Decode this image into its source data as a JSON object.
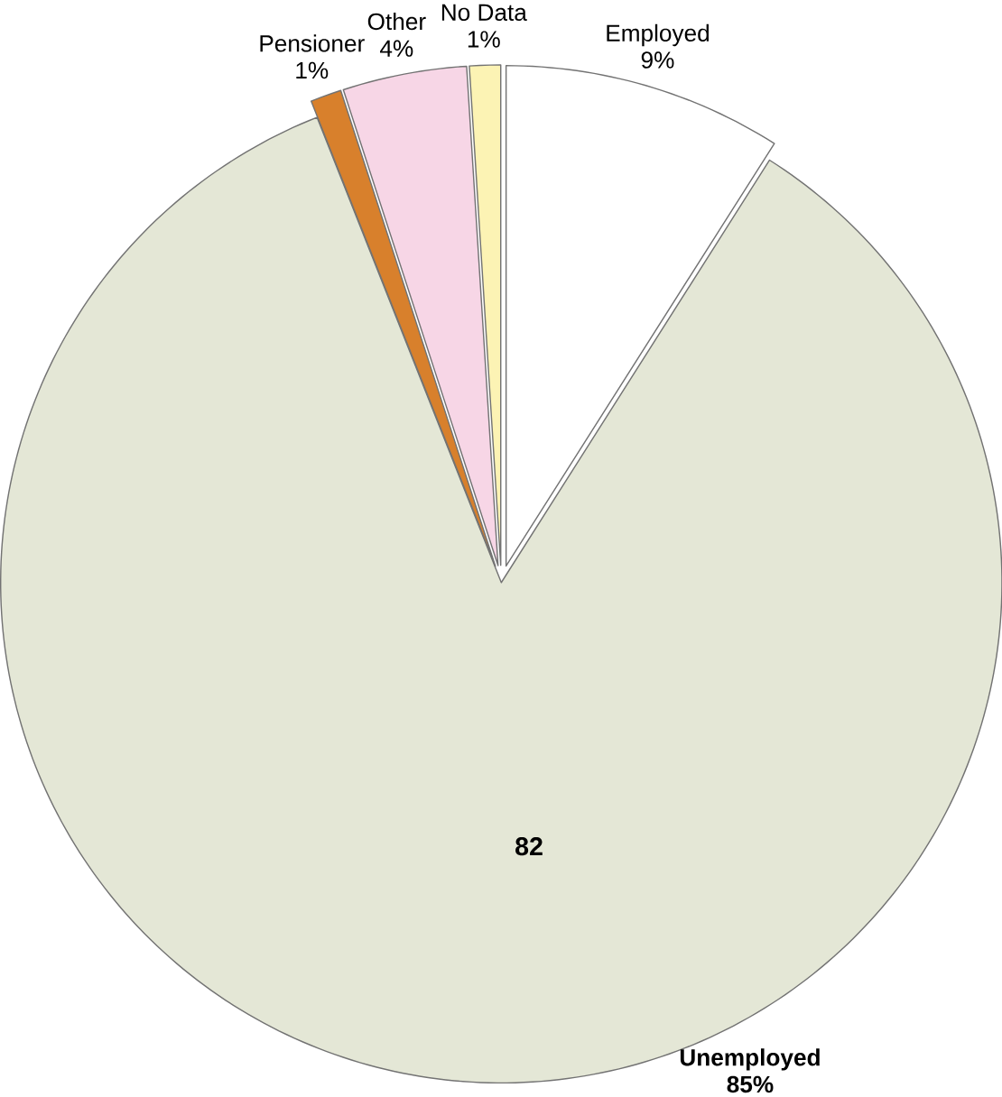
{
  "chart_data": {
    "type": "pie",
    "categories": [
      "Employed",
      "Unemployed",
      "Pensioner",
      "Other",
      "No Data"
    ],
    "values": [
      9,
      85,
      1,
      4,
      1
    ],
    "value_labels": [
      "9%",
      "85%",
      "1%",
      "4%",
      "1%"
    ],
    "colors": [
      "#ffffff",
      "#e4e7d6",
      "#d8802c",
      "#f7d6e6",
      "#fcf3b4"
    ],
    "annotations": [
      "82"
    ],
    "legend": false
  }
}
